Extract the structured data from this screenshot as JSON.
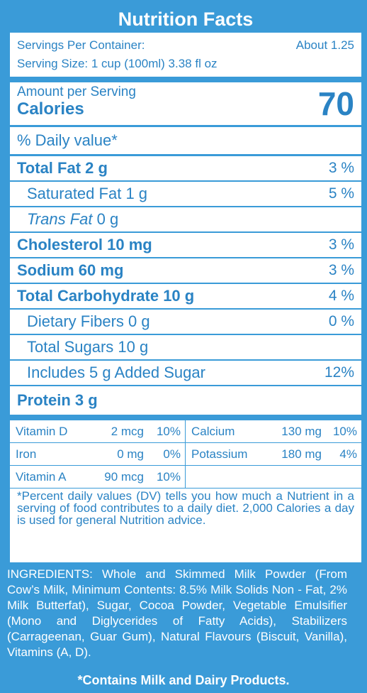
{
  "title": "Nutrition Facts",
  "servings": {
    "label": "Servings Per Container:",
    "value": "About 1.25",
    "size": "Serving Size: 1 cup (100ml) 3.38 fl oz"
  },
  "amount_label": "Amount per Serving",
  "calories_label": "Calories",
  "calories_value": "70",
  "daily_value_header": "% Daily value*",
  "nutrients": [
    {
      "name": "Total Fat",
      "amount": "2 g",
      "pct": "3 %"
    },
    {
      "name": "Saturated Fat",
      "amount": "1 g",
      "pct": "5 %"
    },
    {
      "name": "Trans Fat",
      "amount": "0 g",
      "pct": ""
    },
    {
      "name": "Cholesterol",
      "amount": "10 mg",
      "pct": "3 %"
    },
    {
      "name": "Sodium",
      "amount": "60 mg",
      "pct": "3 %"
    },
    {
      "name": "Total Carbohydrate",
      "amount": "10 g",
      "pct": "4 %"
    },
    {
      "name": "Dietary Fibers",
      "amount": "0 g",
      "pct": "0 %"
    },
    {
      "name": "Total Sugars",
      "amount": "10 g",
      "pct": ""
    },
    {
      "name": "Includes 5 g Added Sugar",
      "amount": "",
      "pct": "12%"
    },
    {
      "name": "Protein",
      "amount": "3 g",
      "pct": ""
    }
  ],
  "vitamins": [
    {
      "name": "Vitamin D",
      "amount": "2 mcg",
      "pct": "10%"
    },
    {
      "name": "Calcium",
      "amount": "130 mg",
      "pct": "10%"
    },
    {
      "name": "Iron",
      "amount": "0 mg",
      "pct": "0%"
    },
    {
      "name": "Potassium",
      "amount": "180 mg",
      "pct": "4%"
    },
    {
      "name": "Vitamin A",
      "amount": "90 mcg",
      "pct": "10%"
    }
  ],
  "footnote": "*Percent daily values (DV) tells you how much a Nutrient in a serving of food contributes to a daily diet. 2,000 Calories a day is used for general Nutrition advice.",
  "ingredients": "INGREDIENTS: Whole and Skimmed Milk Powder (From Cow’s Milk, Minimum Contents: 8.5% Milk Solids Non - Fat, 2% Milk Butterfat), Sugar, Cocoa Powder, Vegetable Emulsifier (Mono and Diglycerides of Fatty Acids), Stabilizers (Carrageenan, Guar Gum), Natural Flavours (Biscuit, Vanilla), Vitamins (A, D).",
  "allergen": "*Contains Milk and Dairy Products.",
  "colors": {
    "primary": "#3a9bd8",
    "text": "#2a83c4",
    "panel": "#ffffff"
  }
}
